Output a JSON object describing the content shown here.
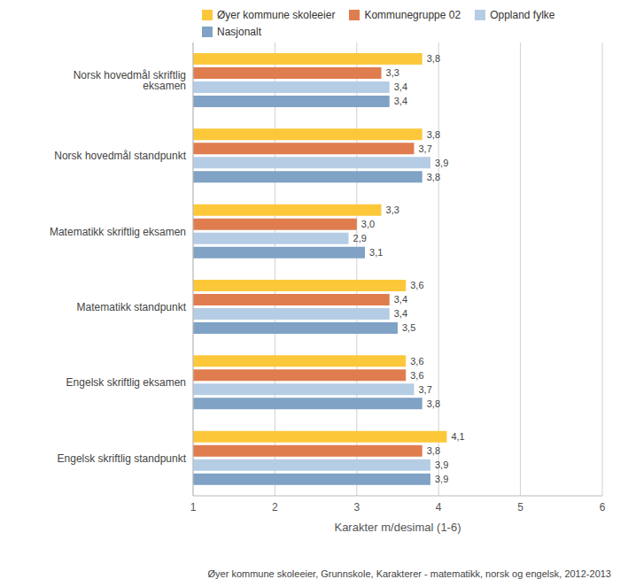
{
  "chart_data": {
    "type": "bar",
    "orientation": "horizontal",
    "categories": [
      "Norsk hovedmål skriftlig eksamen",
      "Norsk hovedmål standpunkt",
      "Matematikk skriftlig eksamen",
      "Matematikk standpunkt",
      "Engelsk skriftlig eksamen",
      "Engelsk skriftlig standpunkt"
    ],
    "series": [
      {
        "name": "Øyer kommune skoleeier",
        "color": "#fcc83a",
        "values": [
          3.8,
          3.8,
          3.3,
          3.6,
          3.6,
          4.1
        ],
        "value_labels": [
          "3,8",
          "3,8",
          "3,3",
          "3,6",
          "3,6",
          "4,1"
        ]
      },
      {
        "name": "Kommunegruppe 02",
        "color": "#df7d4f",
        "values": [
          3.3,
          3.7,
          3.0,
          3.4,
          3.6,
          3.8
        ],
        "value_labels": [
          "3,3",
          "3,7",
          "3,0",
          "3,4",
          "3,6",
          "3,8"
        ]
      },
      {
        "name": "Oppland fylke",
        "color": "#b5cde4",
        "values": [
          3.4,
          3.9,
          2.9,
          3.4,
          3.7,
          3.9
        ],
        "value_labels": [
          "3,4",
          "3,9",
          "2,9",
          "3,4",
          "3,7",
          "3,9"
        ]
      },
      {
        "name": "Nasjonalt",
        "color": "#7fa2c5",
        "values": [
          3.4,
          3.8,
          3.1,
          3.5,
          3.8,
          3.9
        ],
        "value_labels": [
          "3,4",
          "3,8",
          "3,1",
          "3,5",
          "3,8",
          "3,9"
        ]
      }
    ],
    "xlabel": "Karakter m/desimal (1-6)",
    "xlim": [
      1,
      6
    ],
    "xticks": [
      1,
      2,
      3,
      4,
      5,
      6
    ],
    "grid": true,
    "data_labels": true,
    "legend": "top",
    "annotation": "Øyer kommune skoleeier, Grunnskole, Karakterer - matematikk, norsk og engelsk, 2012-2013"
  }
}
